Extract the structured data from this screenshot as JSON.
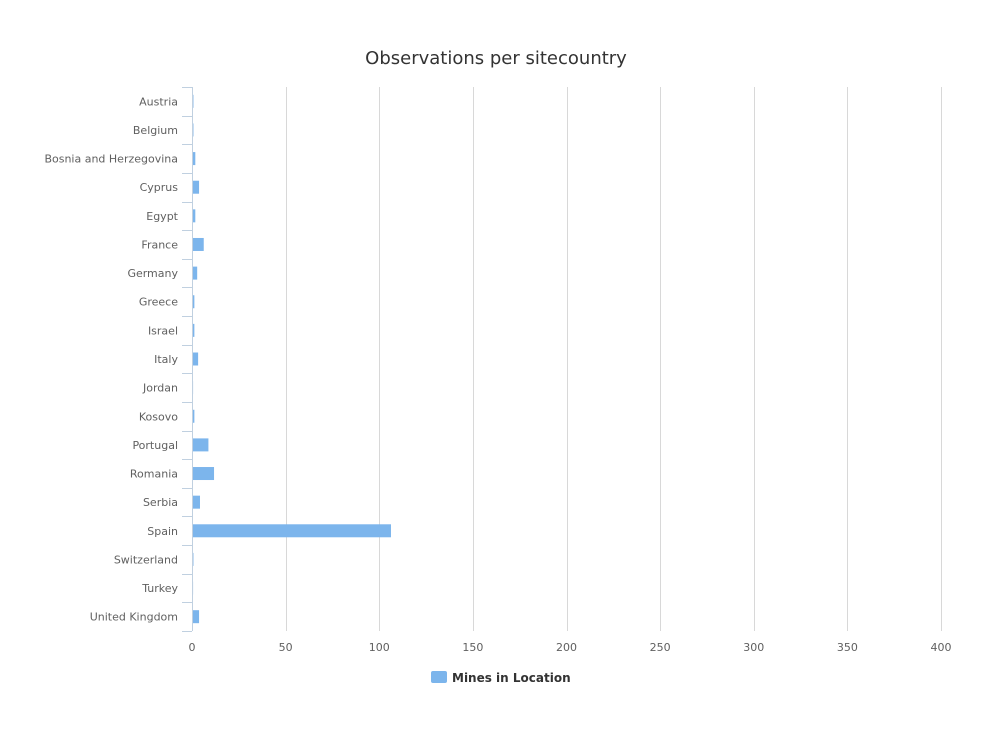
{
  "chart_data": {
    "type": "bar",
    "orientation": "horizontal",
    "title": "Observations per sitecountry",
    "xlabel": "",
    "ylabel": "",
    "categories": [
      "Austria",
      "Belgium",
      "Bosnia and Herzegovina",
      "Cyprus",
      "Egypt",
      "France",
      "Germany",
      "Greece",
      "Israel",
      "Italy",
      "Jordan",
      "Kosovo",
      "Portugal",
      "Romania",
      "Serbia",
      "Spain",
      "Switzerland",
      "Turkey",
      "United Kingdom"
    ],
    "series": [
      {
        "name": "Mines in Location",
        "color": "#7cb5ec",
        "values": [
          0.5,
          0.5,
          1.5,
          3.5,
          1.5,
          6,
          2.5,
          1,
          1,
          3,
          0.3,
          1,
          8.5,
          11.5,
          4,
          106,
          0.5,
          0.3,
          3.5
        ]
      }
    ],
    "xlim": [
      0,
      400
    ],
    "ticks": [
      "0",
      "50",
      "100",
      "150",
      "200",
      "250",
      "300",
      "350",
      "400"
    ],
    "grid": true,
    "legend_position": "bottom-center",
    "colors": {
      "title": "#333333",
      "labels": "#606060",
      "grid": "#d8d8d8",
      "axis": "#c0d0e0",
      "legend_text": "#333333"
    }
  }
}
